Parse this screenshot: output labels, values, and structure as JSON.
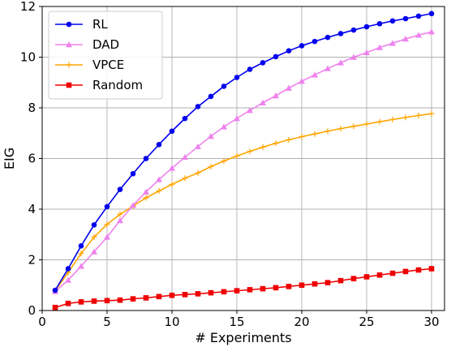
{
  "chart_data": {
    "type": "line",
    "xlabel": "# Experiments",
    "ylabel": "EIG",
    "xlim": [
      0,
      31
    ],
    "ylim": [
      0,
      12
    ],
    "xticks": [
      0,
      5,
      10,
      15,
      20,
      25,
      30
    ],
    "yticks": [
      0,
      2,
      4,
      6,
      8,
      10,
      12
    ],
    "grid": true,
    "legend_position": "top-left",
    "x": [
      1,
      2,
      3,
      4,
      5,
      6,
      7,
      8,
      9,
      10,
      11,
      12,
      13,
      14,
      15,
      16,
      17,
      18,
      19,
      20,
      21,
      22,
      23,
      24,
      25,
      26,
      27,
      28,
      29,
      30
    ],
    "series": [
      {
        "name": "RL",
        "color": "#0000ee",
        "marker": "circle",
        "values": [
          0.8,
          1.65,
          2.55,
          3.38,
          4.1,
          4.78,
          5.4,
          6.0,
          6.55,
          7.08,
          7.58,
          8.05,
          8.45,
          8.85,
          9.2,
          9.52,
          9.78,
          10.02,
          10.25,
          10.45,
          10.62,
          10.78,
          10.93,
          11.07,
          11.2,
          11.32,
          11.43,
          11.52,
          11.62,
          11.72
        ]
      },
      {
        "name": "DAD",
        "color": "#ee82ee",
        "marker": "triangle",
        "values": [
          0.75,
          1.2,
          1.75,
          2.32,
          2.9,
          3.55,
          4.15,
          4.68,
          5.17,
          5.62,
          6.05,
          6.47,
          6.88,
          7.25,
          7.58,
          7.9,
          8.2,
          8.48,
          8.78,
          9.05,
          9.3,
          9.55,
          9.78,
          10.0,
          10.18,
          10.38,
          10.55,
          10.72,
          10.87,
          11.0
        ]
      },
      {
        "name": "VPCE",
        "color": "#ffa500",
        "marker": "plus",
        "values": [
          0.78,
          1.5,
          2.25,
          2.9,
          3.4,
          3.8,
          4.12,
          4.45,
          4.72,
          4.98,
          5.22,
          5.43,
          5.68,
          5.9,
          6.1,
          6.28,
          6.45,
          6.6,
          6.74,
          6.86,
          6.97,
          7.08,
          7.18,
          7.27,
          7.36,
          7.45,
          7.54,
          7.62,
          7.7,
          7.77
        ]
      },
      {
        "name": "Random",
        "color": "#ee0000",
        "marker": "square",
        "values": [
          0.12,
          0.28,
          0.34,
          0.37,
          0.39,
          0.41,
          0.46,
          0.5,
          0.55,
          0.6,
          0.63,
          0.66,
          0.7,
          0.74,
          0.78,
          0.82,
          0.86,
          0.9,
          0.95,
          1.0,
          1.05,
          1.1,
          1.18,
          1.26,
          1.33,
          1.4,
          1.47,
          1.54,
          1.6,
          1.65
        ]
      }
    ]
  }
}
